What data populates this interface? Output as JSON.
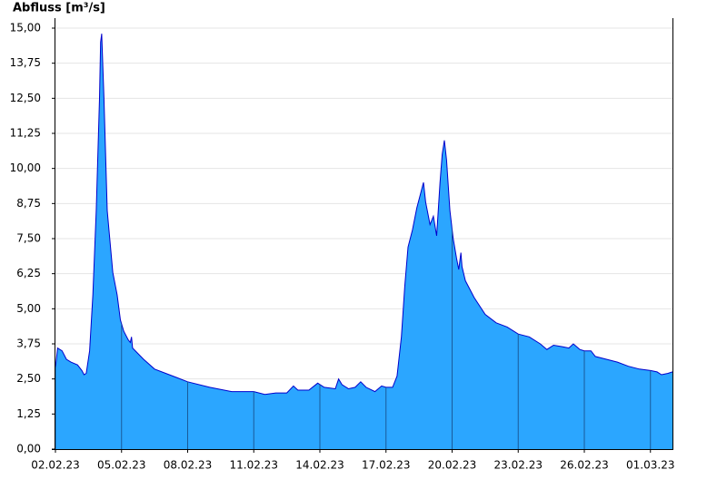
{
  "chart_data": {
    "type": "area",
    "title": "Abfluss [m³/s]",
    "color": "#2ba6ff",
    "line_color": "#0000cc",
    "grid": true,
    "x": [
      0,
      0.1,
      0.3,
      0.5,
      0.7,
      1.0,
      1.2,
      1.3,
      1.4,
      1.55,
      1.7,
      1.85,
      2.0,
      2.05,
      2.1,
      2.2,
      2.35,
      2.6,
      2.8,
      2.95,
      3.1,
      3.3,
      3.4,
      3.45,
      3.5,
      4.0,
      4.5,
      5.0,
      5.5,
      6.0,
      7.0,
      8.0,
      9.0,
      9.5,
      10.0,
      10.5,
      10.8,
      11.0,
      11.5,
      11.9,
      12.2,
      12.7,
      12.85,
      13.0,
      13.3,
      13.6,
      13.85,
      14.1,
      14.5,
      14.8,
      15.0,
      15.3,
      15.5,
      15.7,
      15.85,
      16.0,
      16.2,
      16.4,
      16.6,
      16.7,
      16.8,
      17.0,
      17.15,
      17.3,
      17.45,
      17.55,
      17.65,
      17.75,
      17.9,
      18.05,
      18.2,
      18.3,
      18.4,
      18.45,
      18.6,
      19.0,
      19.5,
      20.0,
      20.5,
      21.0,
      21.5,
      22.0,
      22.3,
      22.6,
      23.0,
      23.3,
      23.5,
      23.8,
      24.0,
      24.3,
      24.5,
      25.0,
      25.5,
      26.0,
      26.5,
      27.0,
      27.3,
      27.5,
      27.8,
      28.0
    ],
    "values": [
      2.9,
      3.6,
      3.5,
      3.2,
      3.1,
      3.0,
      2.8,
      2.65,
      2.7,
      3.5,
      5.5,
      8.5,
      12.5,
      14.5,
      14.8,
      12.5,
      8.5,
      6.3,
      5.5,
      4.6,
      4.2,
      3.9,
      3.8,
      4.0,
      3.6,
      3.2,
      2.85,
      2.7,
      2.55,
      2.4,
      2.2,
      2.05,
      2.05,
      1.95,
      2.0,
      2.0,
      2.25,
      2.1,
      2.1,
      2.35,
      2.2,
      2.15,
      2.5,
      2.3,
      2.15,
      2.2,
      2.4,
      2.2,
      2.05,
      2.25,
      2.2,
      2.2,
      2.6,
      4.0,
      5.8,
      7.2,
      7.8,
      8.6,
      9.2,
      9.5,
      8.8,
      8.0,
      8.3,
      7.6,
      9.5,
      10.5,
      11.0,
      10.3,
      8.5,
      7.5,
      6.8,
      6.4,
      7.0,
      6.5,
      6.0,
      5.4,
      4.8,
      4.5,
      4.35,
      4.1,
      4.0,
      3.75,
      3.55,
      3.7,
      3.65,
      3.6,
      3.75,
      3.55,
      3.5,
      3.5,
      3.3,
      3.2,
      3.1,
      2.95,
      2.85,
      2.8,
      2.75,
      2.65,
      2.7,
      2.75
    ],
    "xlim": [
      0,
      28
    ],
    "xticks": [
      {
        "value": 0,
        "label": "02.02.23"
      },
      {
        "value": 3,
        "label": "05.02.23"
      },
      {
        "value": 6,
        "label": "08.02.23"
      },
      {
        "value": 9,
        "label": "11.02.23"
      },
      {
        "value": 12,
        "label": "14.02.23"
      },
      {
        "value": 15,
        "label": "17.02.23"
      },
      {
        "value": 18,
        "label": "20.02.23"
      },
      {
        "value": 21,
        "label": "23.02.23"
      },
      {
        "value": 24,
        "label": "26.02.23"
      },
      {
        "value": 27,
        "label": "01.03.23"
      }
    ],
    "ylim": [
      0,
      15
    ],
    "yticks": [
      {
        "value": 0,
        "label": "0,00"
      },
      {
        "value": 1.25,
        "label": "1,25"
      },
      {
        "value": 2.5,
        "label": "2,50"
      },
      {
        "value": 3.75,
        "label": "3,75"
      },
      {
        "value": 5,
        "label": "5,00"
      },
      {
        "value": 6.25,
        "label": "6,25"
      },
      {
        "value": 7.5,
        "label": "7,50"
      },
      {
        "value": 8.75,
        "label": "8,75"
      },
      {
        "value": 10,
        "label": "10,00"
      },
      {
        "value": 11.25,
        "label": "11,25"
      },
      {
        "value": 12.5,
        "label": "12,50"
      },
      {
        "value": 13.75,
        "label": "13,75"
      },
      {
        "value": 15,
        "label": "15,00"
      }
    ]
  }
}
